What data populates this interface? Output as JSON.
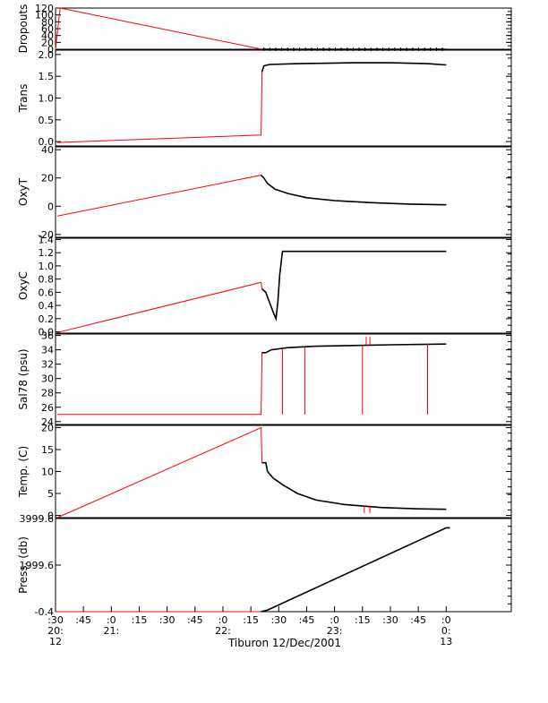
{
  "chart_data": {
    "type": "line",
    "x_title": "Tiburon 12/Dec/2001",
    "x_range_minutes": [
      -30,
      215
    ],
    "x_ticks": [
      {
        "m": -30,
        "l1": ":30",
        "l2": "20:",
        "l3": "12"
      },
      {
        "m": -15,
        "l1": ":45",
        "l2": "",
        "l3": ""
      },
      {
        "m": 0,
        "l1": ":0",
        "l2": "21:",
        "l3": ""
      },
      {
        "m": 15,
        "l1": ":15",
        "l2": "",
        "l3": ""
      },
      {
        "m": 30,
        "l1": ":30",
        "l2": "",
        "l3": ""
      },
      {
        "m": 45,
        "l1": ":45",
        "l2": "",
        "l3": ""
      },
      {
        "m": 60,
        "l1": ":0",
        "l2": "22:",
        "l3": ""
      },
      {
        "m": 75,
        "l1": ":15",
        "l2": "",
        "l3": ""
      },
      {
        "m": 90,
        "l1": ":30",
        "l2": "",
        "l3": ""
      },
      {
        "m": 105,
        "l1": ":45",
        "l2": "",
        "l3": ""
      },
      {
        "m": 120,
        "l1": ":0",
        "l2": "23:",
        "l3": ""
      },
      {
        "m": 135,
        "l1": ":15",
        "l2": "",
        "l3": ""
      },
      {
        "m": 150,
        "l1": ":30",
        "l2": "",
        "l3": ""
      },
      {
        "m": 165,
        "l1": ":45",
        "l2": "",
        "l3": ""
      },
      {
        "m": 180,
        "l1": ":0",
        "l2": "0:",
        "l3": "13"
      }
    ],
    "series_colors": {
      "raw": "#ff0000",
      "processed": "#000000"
    },
    "panels": [
      {
        "ylabel": "Dropouts",
        "ylim": [
          0,
          120
        ],
        "yticks": [
          0,
          20,
          40,
          60,
          80,
          100,
          120
        ],
        "ytick_labels": [
          "0",
          "20",
          "40",
          "60",
          "80",
          "100",
          "120"
        ],
        "red": [
          [
            -30,
            0
          ],
          [
            -27.5,
            120
          ],
          [
            81,
            0
          ],
          [
            180,
            0
          ]
        ],
        "black": [
          [
            81,
            0
          ],
          [
            180,
            0
          ]
        ]
      },
      {
        "ylabel": "Trans",
        "ylim": [
          -0.1,
          2.1
        ],
        "yticks": [
          0.0,
          0.5,
          1.0,
          1.5,
          2.0
        ],
        "ytick_labels": [
          "0.0",
          "0.5",
          "1.0",
          "1.5",
          "2.0"
        ],
        "red": [
          [
            -29,
            -0.02
          ],
          [
            80.5,
            0.15
          ],
          [
            81,
            1.6
          ],
          [
            82,
            1.74
          ],
          [
            85,
            1.77
          ],
          [
            100,
            1.79
          ],
          [
            130,
            1.81
          ],
          [
            150,
            1.81
          ],
          [
            170,
            1.79
          ],
          [
            180,
            1.76
          ]
        ],
        "black": [
          [
            81,
            1.6
          ],
          [
            82,
            1.74
          ],
          [
            85,
            1.77
          ],
          [
            100,
            1.79
          ],
          [
            130,
            1.81
          ],
          [
            150,
            1.81
          ],
          [
            170,
            1.79
          ],
          [
            180,
            1.76
          ]
        ]
      },
      {
        "ylabel": "OxyT",
        "ylim": [
          -22,
          42
        ],
        "yticks": [
          -20,
          0,
          20,
          40
        ],
        "ytick_labels": [
          "-20",
          "0",
          "20",
          "40"
        ],
        "red": [
          [
            -29,
            -7
          ],
          [
            80.5,
            22
          ],
          [
            82,
            20
          ],
          [
            84,
            16
          ],
          [
            88,
            12
          ],
          [
            95,
            9
          ],
          [
            105,
            6
          ],
          [
            120,
            4
          ],
          [
            140,
            2.5
          ],
          [
            160,
            1.5
          ],
          [
            180,
            1
          ]
        ],
        "black": [
          [
            80.5,
            22
          ],
          [
            82,
            20
          ],
          [
            84,
            16
          ],
          [
            88,
            12
          ],
          [
            95,
            9
          ],
          [
            105,
            6
          ],
          [
            120,
            4
          ],
          [
            140,
            2.5
          ],
          [
            160,
            1.5
          ],
          [
            180,
            1
          ]
        ]
      },
      {
        "ylabel": "OxyC",
        "ylim": [
          -0.02,
          1.42
        ],
        "yticks": [
          0.0,
          0.2,
          0.4,
          0.6,
          0.8,
          1.0,
          1.2,
          1.4
        ],
        "ytick_labels": [
          "0.0",
          "0.2",
          "0.4",
          "0.6",
          "0.8",
          "1.0",
          "1.2",
          "1.4"
        ],
        "red": [
          [
            -29,
            -0.01
          ],
          [
            80.5,
            0.75
          ],
          [
            81,
            0.65
          ],
          [
            83,
            0.6
          ],
          [
            85,
            0.45
          ],
          [
            87,
            0.3
          ],
          [
            88.5,
            0.2
          ],
          [
            89.5,
            0.45
          ],
          [
            90.5,
            0.85
          ],
          [
            91.5,
            1.1
          ],
          [
            92,
            1.22
          ],
          [
            100,
            1.22
          ],
          [
            140,
            1.22
          ],
          [
            180,
            1.22
          ]
        ],
        "black": [
          [
            81,
            0.65
          ],
          [
            83,
            0.6
          ],
          [
            85,
            0.45
          ],
          [
            87,
            0.3
          ],
          [
            88.5,
            0.2
          ],
          [
            89.5,
            0.45
          ],
          [
            90.5,
            0.85
          ],
          [
            91.5,
            1.1
          ],
          [
            92,
            1.22
          ],
          [
            100,
            1.22
          ],
          [
            140,
            1.22
          ],
          [
            180,
            1.22
          ]
        ]
      },
      {
        "ylabel": "Sal78 (psu)",
        "ylim": [
          23.6,
          36.2
        ],
        "yticks": [
          24,
          26,
          28,
          30,
          32,
          34,
          36
        ],
        "ytick_labels": [
          "24",
          "26",
          "28",
          "30",
          "32",
          "34",
          "36"
        ],
        "red": [
          [
            -29,
            25
          ],
          [
            80.5,
            25
          ],
          [
            81,
            33.6
          ],
          [
            83,
            33.6
          ],
          [
            86,
            34.0
          ],
          [
            95,
            34.3
          ],
          [
            110,
            34.5
          ],
          [
            130,
            34.6
          ],
          [
            150,
            34.7
          ],
          [
            180,
            34.8
          ]
        ],
        "black": [
          [
            81,
            33.6
          ],
          [
            83,
            33.6
          ],
          [
            86,
            34.0
          ],
          [
            95,
            34.3
          ],
          [
            110,
            34.5
          ],
          [
            130,
            34.6
          ],
          [
            150,
            34.7
          ],
          [
            180,
            34.8
          ]
        ],
        "red_spikes": [
          [
            92,
            25
          ],
          [
            104,
            25
          ],
          [
            135,
            25
          ],
          [
            137,
            35.8
          ],
          [
            139,
            35.8
          ],
          [
            170,
            25
          ]
        ]
      },
      {
        "ylabel": "Temp. (C)",
        "ylim": [
          -0.5,
          20.5
        ],
        "yticks": [
          0,
          5,
          10,
          15,
          20
        ],
        "ytick_labels": [
          "0",
          "5",
          "10",
          "15",
          "20"
        ],
        "red": [
          [
            -29,
            -0.5
          ],
          [
            80.5,
            20
          ],
          [
            81,
            12
          ],
          [
            83,
            12
          ],
          [
            84,
            10
          ],
          [
            87,
            8.5
          ],
          [
            92,
            7
          ],
          [
            100,
            5
          ],
          [
            110,
            3.5
          ],
          [
            125,
            2.5
          ],
          [
            145,
            1.8
          ],
          [
            165,
            1.5
          ],
          [
            180,
            1.4
          ]
        ],
        "black": [
          [
            81,
            12
          ],
          [
            83,
            12
          ],
          [
            84,
            10
          ],
          [
            87,
            8.5
          ],
          [
            92,
            7
          ],
          [
            100,
            5
          ],
          [
            110,
            3.5
          ],
          [
            125,
            2.5
          ],
          [
            145,
            1.8
          ],
          [
            165,
            1.5
          ],
          [
            180,
            1.4
          ]
        ],
        "red_spikes": [
          [
            136,
            0.5
          ],
          [
            139,
            0.5
          ]
        ]
      },
      {
        "ylabel": "Press. (db)",
        "ylim": [
          -0.4,
          3999.6
        ],
        "yticks": [
          -0.4,
          1999.6,
          3999.6
        ],
        "ytick_labels": [
          "-0.4",
          "1999.6",
          "3999.6"
        ],
        "red": [
          [
            -30,
            -0.4
          ],
          [
            80.5,
            -0.4
          ],
          [
            84,
            70
          ],
          [
            180,
            3600
          ],
          [
            182,
            3600
          ]
        ],
        "black": [
          [
            80.5,
            -0.4
          ],
          [
            84,
            70
          ],
          [
            180,
            3600
          ],
          [
            182,
            3600
          ]
        ]
      }
    ]
  }
}
